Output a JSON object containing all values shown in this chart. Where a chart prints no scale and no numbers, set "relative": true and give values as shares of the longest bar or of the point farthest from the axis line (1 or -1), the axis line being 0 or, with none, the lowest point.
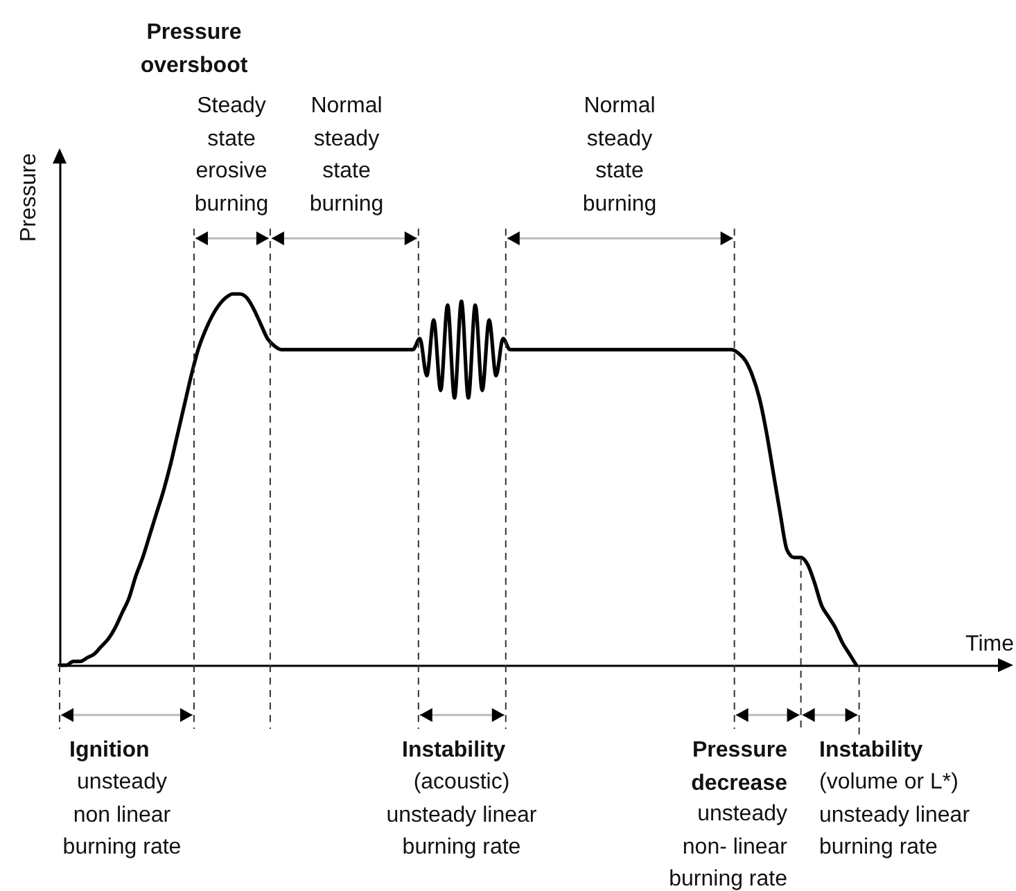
{
  "chart_data": {
    "type": "line",
    "relative": true,
    "xlabel": "Time",
    "ylabel": "Pressure",
    "categories": [
      null,
      null,
      null,
      null,
      null,
      null,
      null,
      null,
      null,
      null,
      null,
      null,
      null,
      null,
      null,
      null,
      null,
      null,
      null,
      null,
      null,
      null,
      null,
      null,
      null,
      null,
      null,
      null,
      null,
      null,
      null,
      null,
      null,
      null,
      null,
      null,
      null,
      null,
      null,
      null,
      null,
      null,
      null,
      null,
      null,
      null,
      null,
      null,
      null,
      null,
      null,
      null,
      null,
      null,
      null,
      null,
      null,
      null,
      null,
      null,
      null,
      null,
      null,
      null,
      null,
      null,
      null,
      null,
      null,
      null,
      null,
      null,
      null,
      null,
      null,
      null,
      null,
      null,
      null,
      null,
      null,
      null,
      null,
      null,
      null,
      null,
      null,
      null,
      null,
      null,
      null,
      null,
      null,
      null,
      null,
      null,
      null,
      null,
      null,
      null,
      null,
      null,
      null,
      null,
      null,
      null,
      null,
      null,
      null,
      null,
      null,
      null,
      null,
      null,
      null,
      null
    ],
    "series": [
      {
        "color": "#000000",
        "values": [
          0,
          0,
          0.01,
          0.01,
          0.02,
          0.03,
          0.05,
          0.07,
          0.1,
          0.14,
          0.18,
          0.24,
          0.29,
          0.35,
          0.41,
          0.47,
          0.54,
          0.62,
          0.7,
          0.78,
          0.85,
          0.9,
          0.94,
          0.97,
          0.99,
          1,
          1,
          0.99,
          0.96,
          0.92,
          0.88,
          0.86,
          0.85,
          0.85,
          0.85,
          0.85,
          0.85,
          0.85,
          0.85,
          0.85,
          0.85,
          0.85,
          0.85,
          0.85,
          0.85,
          0.85,
          0.85,
          0.85,
          0.85,
          0.85,
          0.85,
          0.85,
          0.88,
          0.78,
          0.93,
          0.74,
          0.97,
          0.72,
          0.98,
          0.72,
          0.97,
          0.74,
          0.93,
          0.78,
          0.88,
          0.85,
          0.85,
          0.85,
          0.85,
          0.85,
          0.85,
          0.85,
          0.85,
          0.85,
          0.85,
          0.85,
          0.85,
          0.85,
          0.85,
          0.85,
          0.85,
          0.85,
          0.85,
          0.85,
          0.85,
          0.85,
          0.85,
          0.85,
          0.85,
          0.85,
          0.85,
          0.85,
          0.85,
          0.85,
          0.85,
          0.85,
          0.85,
          0.85,
          0.84,
          0.82,
          0.78,
          0.72,
          0.63,
          0.52,
          0.41,
          0.31,
          0.29,
          0.29,
          0.27,
          0.22,
          0.16,
          0.13,
          0.1,
          0.06,
          0.03,
          0
        ]
      }
    ],
    "annotations": [
      "Pressure\noversboot",
      "Steady\nstate\nerosive\nburning",
      "Normal\nsteady\nstate\nburning",
      "Normal\nsteady\nstate\nburning",
      "Ignition",
      "unsteady\nnon linear\nburning rate",
      "Instability",
      "(acoustic)\nunsteady linear\nburning rate",
      "Pressure\ndecrease",
      "unsteady\nnon- linear\nburning rate",
      "Instability",
      "(volume or L*)\nunsteady linear\nburning rate"
    ]
  }
}
